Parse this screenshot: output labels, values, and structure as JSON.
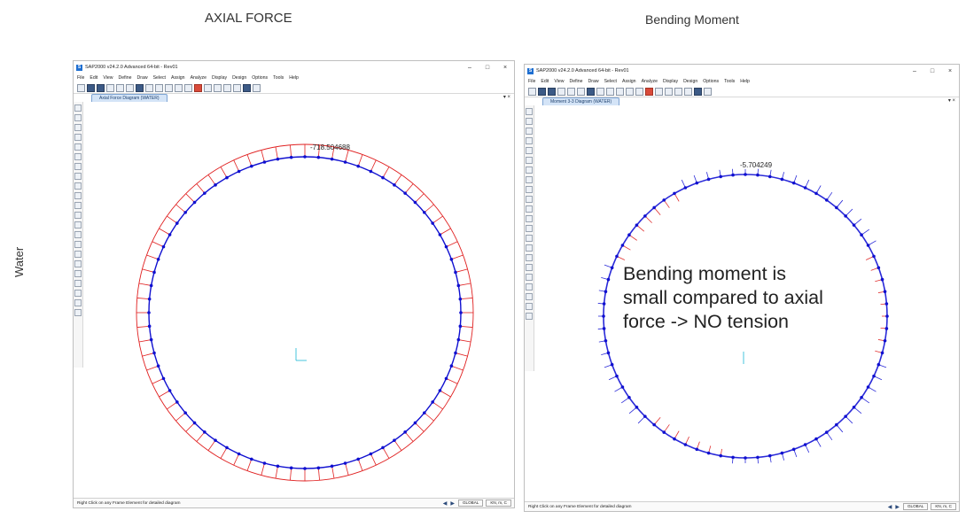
{
  "headings": {
    "axial": "AXIAL FORCE",
    "bending": "Bending Moment",
    "row_label": "Water"
  },
  "left_window": {
    "title": "SAP2000 v24.2.0 Advanced 64-bit - Rev01",
    "logo_letter": "S",
    "window_buttons": {
      "minimize": "–",
      "maximize": "□",
      "close": "×"
    },
    "menus": [
      "File",
      "Edit",
      "View",
      "Define",
      "Draw",
      "Select",
      "Assign",
      "Analyze",
      "Display",
      "Design",
      "Options",
      "Tools",
      "Help"
    ],
    "tab_label": "Axial Force Diagram (WATER)",
    "tab_close": "▾ ×",
    "diagram_value": "-718.504688",
    "status_text": "Right Click on any Frame Element for detailed diagram",
    "coord_system": "GLOBAL",
    "units": "KN, m, C"
  },
  "right_window": {
    "title": "SAP2000 v24.2.0 Advanced 64-bit - Rev01",
    "logo_letter": "S",
    "window_buttons": {
      "minimize": "–",
      "maximize": "□",
      "close": "×"
    },
    "menus": [
      "File",
      "Edit",
      "View",
      "Define",
      "Draw",
      "Select",
      "Assign",
      "Analyze",
      "Display",
      "Design",
      "Options",
      "Tools",
      "Help"
    ],
    "tab_label": "Moment 3-3 Diagram (WATER)",
    "tab_close": "▾ ×",
    "diagram_value": "-5.704249",
    "status_text": "Right Click on any Frame Element for detailed diagram",
    "coord_system": "GLOBAL",
    "units": "KN, m, C"
  },
  "annotation": {
    "line1": "Bending moment is",
    "line2": "small compared to axial",
    "line3": "force -> NO tension"
  },
  "colors": {
    "axial_diagram": "#e02020",
    "frame_nodes": "#1010d0",
    "moment_positive": "#2a2ad8",
    "moment_negative": "#e03030",
    "axis_marker": "#19b7d6"
  },
  "icons": [
    "sap-logo-icon",
    "new-file-icon",
    "open-icon",
    "save-icon",
    "undo-icon",
    "redo-icon",
    "pointer-icon",
    "zoom-icon",
    "pan-icon",
    "rotate-icon"
  ]
}
